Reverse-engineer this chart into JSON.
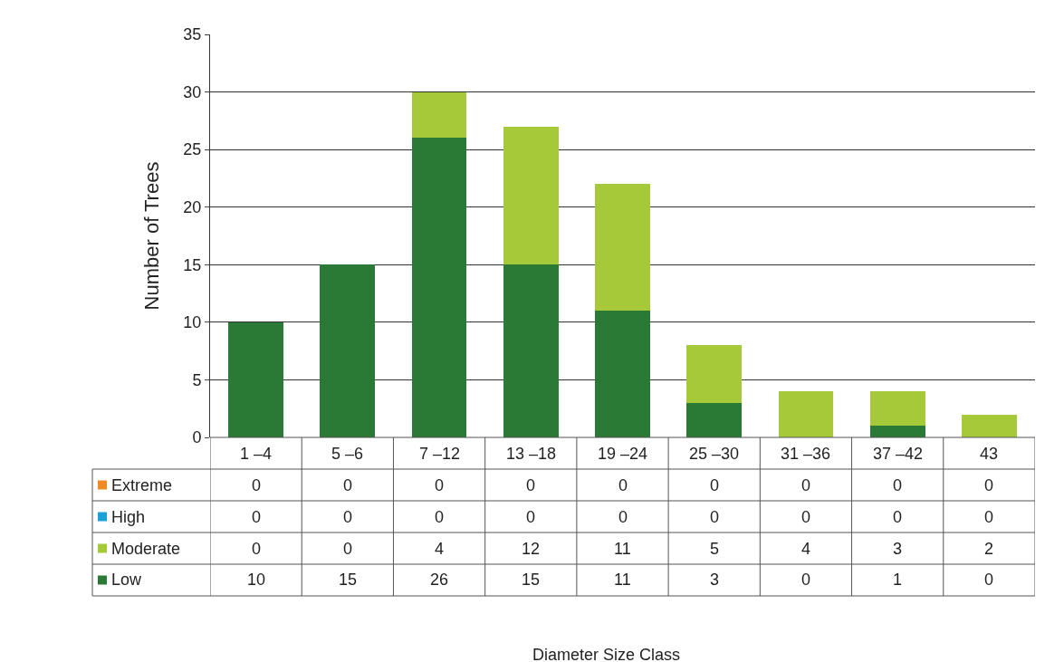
{
  "chart_data": {
    "type": "bar",
    "stacked": true,
    "annotations": [
      "Diameter Size Class"
    ],
    "ylabel": "Number of Trees",
    "legend": "bottom left",
    "categories": [
      "1 –4",
      "5 –6",
      "7 –12",
      "13 –18",
      "19 –24",
      "25 –30",
      "31 –36",
      "37 –42",
      "43"
    ],
    "series": [
      {
        "name": "Low",
        "color": "#2a7a35",
        "values": [
          10,
          15,
          26,
          15,
          11,
          3,
          0,
          1,
          0
        ],
        "value_labels": [
          "10",
          "15",
          "26",
          "15",
          "11",
          "3",
          "0",
          "1",
          "0"
        ]
      },
      {
        "name": "Moderate",
        "color": "#a6c93a",
        "values": [
          0,
          0,
          4,
          12,
          11,
          5,
          4,
          3,
          2
        ],
        "value_labels": [
          "0",
          "0",
          "4",
          "12",
          "11",
          "5",
          "4",
          "3",
          "2"
        ]
      },
      {
        "name": "High",
        "color": "#1ba1d8",
        "values": [
          0,
          0,
          0,
          0,
          0,
          0,
          0,
          0,
          0
        ],
        "value_labels": [
          "0",
          "0",
          "0",
          "0",
          "0",
          "0",
          "0",
          "0",
          "0"
        ]
      },
      {
        "name": "Extreme",
        "color": "#f08a24",
        "values": [
          0,
          0,
          0,
          0,
          0,
          0,
          0,
          0,
          0
        ],
        "value_labels": [
          "0",
          "0",
          "0",
          "0",
          "0",
          "0",
          "0",
          "0",
          "0"
        ]
      }
    ],
    "ylim": [
      0,
      35
    ],
    "yticks": [
      0,
      5,
      10,
      15,
      20,
      25,
      30,
      35
    ],
    "grid": "y"
  }
}
